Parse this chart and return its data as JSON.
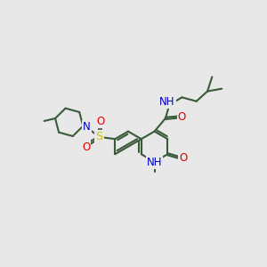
{
  "bg_color": "#e8e8e8",
  "bond_color": "#3a5a3a",
  "bond_width": 1.5,
  "atom_colors": {
    "O": "#dd0000",
    "N": "#0000cc",
    "S": "#cccc00",
    "H": "#708090",
    "C": "#3a5a3a"
  },
  "font_size": 8.5
}
